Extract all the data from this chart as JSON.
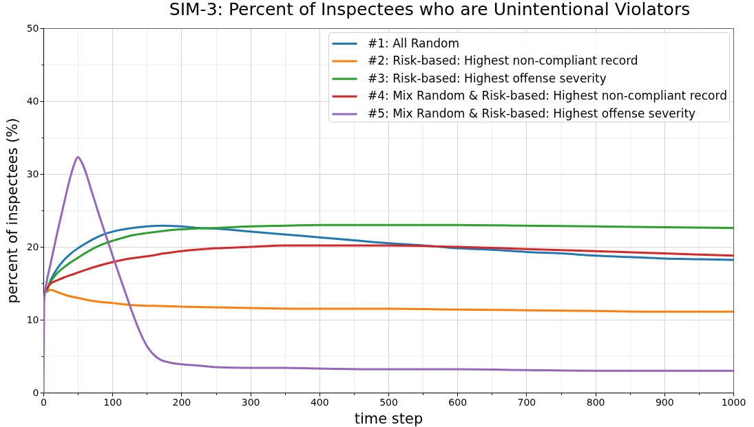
{
  "chart_data": {
    "type": "line",
    "title": "SIM-3: Percent of Inspectees who are Unintentional Violators",
    "xlabel": "time step",
    "ylabel": "percent of inspectees (%)",
    "xlim": [
      0,
      1000
    ],
    "xticks": [
      0,
      {
        "value": 50,
        "label": null
      },
      100,
      {
        "value": 150,
        "label": null
      },
      200,
      {
        "value": 250,
        "label": null
      },
      300,
      {
        "value": 350,
        "label": null
      },
      400,
      {
        "value": 450,
        "label": null
      },
      500,
      {
        "value": 550,
        "label": null
      },
      600,
      {
        "value": 650,
        "label": null
      },
      700,
      {
        "value": 750,
        "label": null
      },
      800,
      {
        "value": 850,
        "label": null
      },
      900,
      {
        "value": 950,
        "label": null
      },
      1000
    ],
    "ylim": [
      0,
      50
    ],
    "yticks": [
      0,
      {
        "value": 5,
        "label": null
      },
      10,
      {
        "value": 15,
        "label": null
      },
      20,
      {
        "value": 25,
        "label": null
      },
      30,
      {
        "value": 35,
        "label": null
      },
      40,
      {
        "value": 45,
        "label": null
      },
      50
    ],
    "grid": true,
    "legend": "top right",
    "series": [
      {
        "name": "#1: All Random",
        "color": "#1f77b4",
        "x": [
          5,
          10,
          20,
          30,
          40,
          50,
          60,
          75,
          90,
          110,
          130,
          150,
          175,
          200,
          225,
          250,
          300,
          350,
          400,
          450,
          500,
          550,
          600,
          650,
          700,
          750,
          800,
          850,
          900,
          950,
          1000
        ],
        "values": [
          14.0,
          15.3,
          17.0,
          18.2,
          19.1,
          19.8,
          20.4,
          21.2,
          21.8,
          22.3,
          22.6,
          22.8,
          22.9,
          22.8,
          22.6,
          22.5,
          22.1,
          21.7,
          21.3,
          20.9,
          20.5,
          20.2,
          19.8,
          19.6,
          19.3,
          19.1,
          18.8,
          18.6,
          18.4,
          18.3,
          18.2
        ]
      },
      {
        "name": "#2: Risk-based: Highest non-compliant record",
        "color": "#ff7f0e",
        "x": [
          5,
          10,
          20,
          35,
          50,
          70,
          100,
          130,
          160,
          200,
          250,
          300,
          400,
          500,
          600,
          700,
          800,
          900,
          1000
        ],
        "values": [
          13.8,
          14.1,
          13.8,
          13.3,
          13.0,
          12.6,
          12.3,
          12.0,
          11.9,
          11.8,
          11.7,
          11.6,
          11.5,
          11.5,
          11.4,
          11.3,
          11.2,
          11.1,
          11.1
        ]
      },
      {
        "name": "#3: Risk-based: Highest offense severity",
        "color": "#2ca02c",
        "x": [
          5,
          10,
          20,
          30,
          40,
          50,
          60,
          75,
          90,
          110,
          130,
          150,
          175,
          200,
          250,
          300,
          350,
          400,
          500,
          600,
          700,
          800,
          900,
          1000
        ],
        "values": [
          14.0,
          15.1,
          16.4,
          17.2,
          17.9,
          18.5,
          19.1,
          19.9,
          20.5,
          21.1,
          21.6,
          21.9,
          22.2,
          22.4,
          22.6,
          22.8,
          22.9,
          23.0,
          23.0,
          23.0,
          22.9,
          22.8,
          22.7,
          22.6
        ]
      },
      {
        "name": "#4: Mix Random & Risk-based: Highest non-compliant record",
        "color": "#d62728",
        "x": [
          5,
          10,
          20,
          30,
          45,
          60,
          80,
          100,
          125,
          150,
          175,
          200,
          250,
          300,
          350,
          400,
          500,
          600,
          700,
          800,
          900,
          1000
        ],
        "values": [
          14.2,
          14.9,
          15.4,
          15.8,
          16.3,
          16.8,
          17.4,
          17.9,
          18.4,
          18.7,
          19.1,
          19.4,
          19.8,
          20.0,
          20.2,
          20.2,
          20.2,
          20.0,
          19.7,
          19.4,
          19.1,
          18.8
        ]
      },
      {
        "name": "#5: Mix Random & Risk-based: Highest offense severity",
        "color": "#9467bd",
        "x": [
          0,
          1,
          5,
          10,
          20,
          30,
          40,
          45,
          50,
          55,
          60,
          70,
          80,
          90,
          100,
          110,
          120,
          130,
          140,
          150,
          160,
          170,
          180,
          190,
          200,
          225,
          250,
          300,
          350,
          400,
          500,
          600,
          700,
          800,
          900,
          1000
        ],
        "values": [
          0,
          12.5,
          15.3,
          17.5,
          21.9,
          26.0,
          29.9,
          31.4,
          32.3,
          31.7,
          30.6,
          27.6,
          24.6,
          21.7,
          18.9,
          16.1,
          13.4,
          10.7,
          8.3,
          6.4,
          5.2,
          4.5,
          4.2,
          4.0,
          3.9,
          3.7,
          3.5,
          3.4,
          3.4,
          3.3,
          3.2,
          3.2,
          3.1,
          3.0,
          3.0,
          3.0
        ]
      }
    ]
  }
}
